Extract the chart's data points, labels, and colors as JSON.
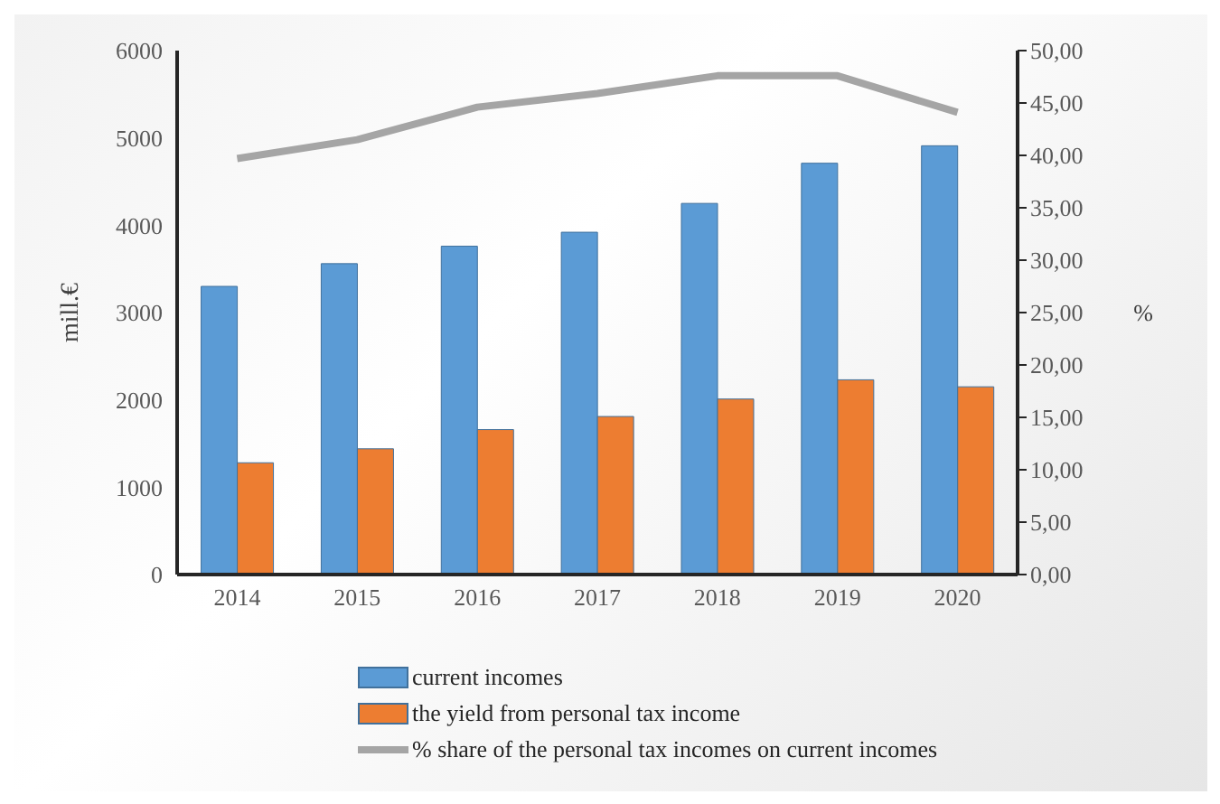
{
  "chart_data": {
    "type": "bar",
    "categories": [
      "2014",
      "2015",
      "2016",
      "2017",
      "2018",
      "2019",
      "2020"
    ],
    "ylabel": "mill.€",
    "y2label": "%",
    "ylim": [
      0,
      6000
    ],
    "yticks": [
      0,
      1000,
      2000,
      3000,
      4000,
      5000,
      6000
    ],
    "y2lim": [
      0,
      50
    ],
    "y2ticks": [
      {
        "value": 0,
        "label": "0,00"
      },
      {
        "value": 5,
        "label": "5,00"
      },
      {
        "value": 10,
        "label": "10,00"
      },
      {
        "value": 15,
        "label": "15,00"
      },
      {
        "value": 20,
        "label": "20,00"
      },
      {
        "value": 25,
        "label": "25,00"
      },
      {
        "value": 30,
        "label": "30,00"
      },
      {
        "value": 35,
        "label": "35,00"
      },
      {
        "value": 40,
        "label": "40,00"
      },
      {
        "value": 45,
        "label": "45,00"
      },
      {
        "value": 50,
        "label": "50,00"
      }
    ],
    "grid": false,
    "legend": "bottom",
    "series": [
      {
        "name": "current incomes",
        "color": "#5b9bd5",
        "values": [
          3300,
          3560,
          3760,
          3920,
          4250,
          4710,
          4910
        ]
      },
      {
        "name": "the yield from personal tax income",
        "color": "#ed7d31",
        "values": [
          1280,
          1440,
          1660,
          1810,
          2010,
          2230,
          2150
        ]
      },
      {
        "name": "% share of the personal tax incomes on current incomes",
        "color": "#a5a5a5",
        "type": "line",
        "axis": "y2",
        "marker": "none",
        "values": [
          39.7,
          41.5,
          44.6,
          45.9,
          47.6,
          47.6,
          44.1
        ]
      }
    ]
  }
}
